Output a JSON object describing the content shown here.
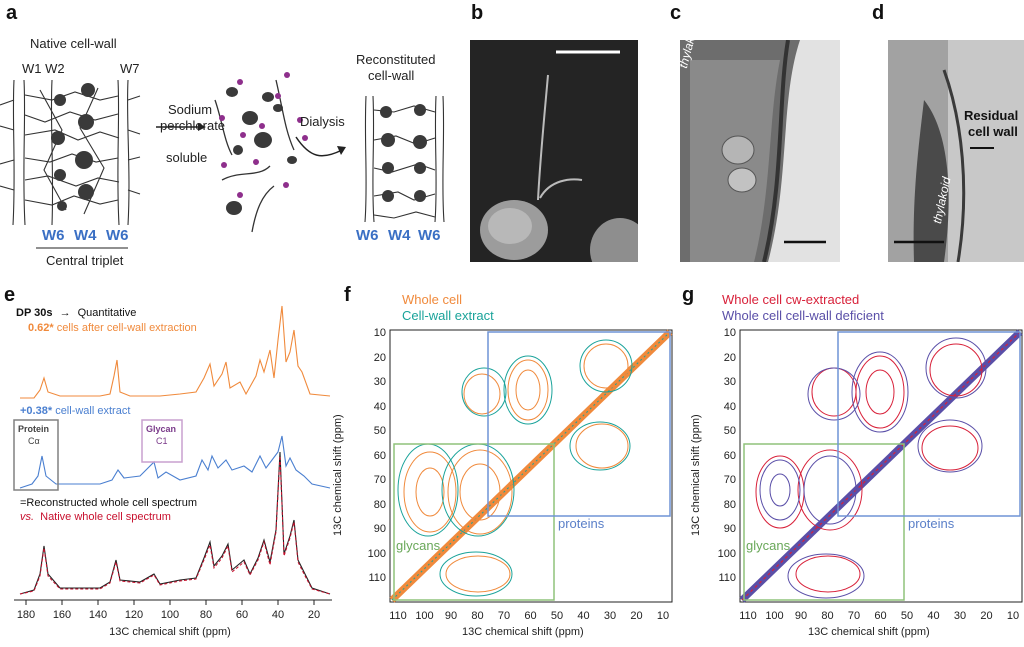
{
  "panels": {
    "a": "a",
    "b": "b",
    "c": "c",
    "d": "d",
    "e": "e",
    "f": "f",
    "g": "g"
  },
  "a": {
    "native": "Native cell-wall",
    "w1w2": "W1 W2",
    "w7": "W7",
    "sodium": "Sodium",
    "perchlorate": "perchlorate",
    "soluble": "soluble",
    "dialysis": "Dialysis",
    "recon1": "Reconstituted",
    "recon2": "cell-wall",
    "w6a": "W6",
    "w4a": "W4",
    "w6b": "W6",
    "central": "Central triplet",
    "w6c": "W6",
    "w4b": "W4",
    "w6d": "W6"
  },
  "c": {
    "thylakoid": "thylakoid"
  },
  "d": {
    "thylakoid": "thylakoid",
    "residual1": "Residual",
    "residual2": "cell wall"
  },
  "e": {
    "dp": "DP 30s",
    "arrow": "→",
    "quant": "Quantitative",
    "coef1": "0.62*",
    "cells": "cells after cell-wall extraction",
    "coef2": "+0.38*",
    "cwextract": "cell-wall extract",
    "protein": "Protein",
    "calpha": "Cα",
    "glycan": "Glycan",
    "c1": "C1",
    "recon": "=Reconstructed whole cell spectrum",
    "vs": "vs.",
    "native": "Native whole cell spectrum",
    "xlabel": "13C chemical shift (ppm)",
    "xticks": [
      "180",
      "160",
      "140",
      "120",
      "100",
      "80",
      "60",
      "40",
      "20"
    ]
  },
  "f": {
    "legend1": "Whole cell",
    "legend2": "Cell-wall extract",
    "proteins": "proteins",
    "glycans": "glycans",
    "xlabel": "13C chemical shift (ppm)",
    "ylabel": "13C chemical shift (ppm)",
    "xticks": [
      "110",
      "100",
      "90",
      "80",
      "70",
      "60",
      "50",
      "40",
      "30",
      "20",
      "10"
    ],
    "yticks": [
      "10",
      "20",
      "30",
      "40",
      "50",
      "60",
      "70",
      "80",
      "90",
      "100",
      "110"
    ]
  },
  "g": {
    "legend1": "Whole cell cw-extracted",
    "legend2": "Whole cell cell-wall deficient",
    "proteins": "proteins",
    "glycans": "glycans",
    "xlabel": "13C chemical shift (ppm)",
    "ylabel": "13C chemical shift (ppm)",
    "xticks": [
      "110",
      "100",
      "90",
      "80",
      "70",
      "60",
      "50",
      "40",
      "30",
      "20",
      "10"
    ],
    "yticks": [
      "10",
      "20",
      "30",
      "40",
      "50",
      "60",
      "70",
      "80",
      "90",
      "100",
      "110"
    ]
  },
  "colors": {
    "w_label": "#3a6fc4",
    "orange": "#f08a3c",
    "teal": "#1aa39a",
    "blue": "#4a7fd0",
    "red": "#d8213a",
    "purple": "#5a4fa8",
    "green_box": "#8fc27a",
    "blue_box": "#6f93d6",
    "gray_box": "#808080",
    "pink_box": "#c9a0cf"
  }
}
